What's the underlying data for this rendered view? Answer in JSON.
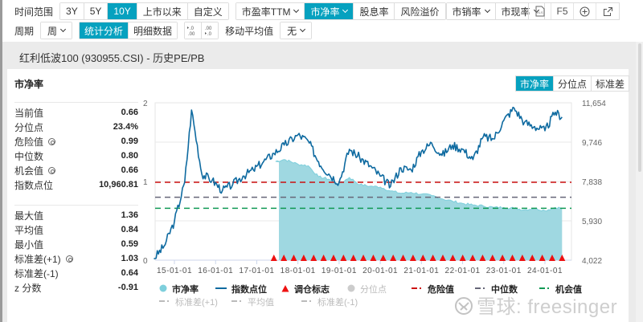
{
  "toolbar": {
    "time_range_label": "时间范围",
    "time_ranges": [
      {
        "label": "3Y",
        "active": false
      },
      {
        "label": "5Y",
        "active": false
      },
      {
        "label": "10Y",
        "active": true
      },
      {
        "label": "上市以来",
        "active": false
      },
      {
        "label": "自定义",
        "active": false
      }
    ],
    "metrics": [
      {
        "label": "市盈率TTM",
        "dropdown": true,
        "active": false
      },
      {
        "label": "市净率",
        "dropdown": true,
        "active": true
      },
      {
        "label": "股息率",
        "dropdown": false,
        "active": false
      },
      {
        "label": "风险溢价",
        "dropdown": false,
        "active": false
      },
      {
        "label": "市销率",
        "dropdown": true,
        "active": false
      },
      {
        "label": "市现率",
        "dropdown": true,
        "active": false
      }
    ],
    "period_label": "周期",
    "period_value": "周",
    "views": [
      {
        "label": "统计分析",
        "active": true
      },
      {
        "label": "明细数据",
        "active": false
      }
    ],
    "decimal_inc": ".0 / .00",
    "decimal_dec": ".00 / .0",
    "moving_avg_label": "移动平均值",
    "moving_avg_value": "无",
    "actions": {
      "xls": "XLS",
      "refresh": "F5",
      "zoom_in": "⊕",
      "open_external": "↗"
    }
  },
  "panel": {
    "title": "红利低波100 (930955.CSI) - 历史PE/PB"
  },
  "card": {
    "title": "市净率",
    "tabs": [
      {
        "label": "市净率",
        "active": true
      },
      {
        "label": "分位点",
        "active": false
      },
      {
        "label": "标准差",
        "active": false
      }
    ]
  },
  "stats": {
    "group1": [
      {
        "label": "当前值",
        "value": "0.66",
        "gear": false
      },
      {
        "label": "分位点",
        "value": "23.4%",
        "gear": false
      },
      {
        "label": "危险值",
        "value": "0.99",
        "gear": true
      },
      {
        "label": "中位数",
        "value": "0.80",
        "gear": false
      },
      {
        "label": "机会值",
        "value": "0.66",
        "gear": true
      },
      {
        "label": "指数点位",
        "value": "10,960.81",
        "gear": false
      }
    ],
    "group2": [
      {
        "label": "最大值",
        "value": "1.36",
        "gear": false
      },
      {
        "label": "平均值",
        "value": "0.84",
        "gear": false
      },
      {
        "label": "最小值",
        "value": "0.59",
        "gear": false
      },
      {
        "label": "标准差(+1)",
        "value": "1.03",
        "gear": true
      },
      {
        "label": "标准差(-1)",
        "value": "0.64",
        "gear": false
      },
      {
        "label": "z 分数",
        "value": "-0.91",
        "gear": false
      }
    ]
  },
  "legend": {
    "row1": [
      {
        "label": "市净率",
        "symbol": "circle",
        "color": "#7ecfdc",
        "dim": false
      },
      {
        "label": "指数点位",
        "symbol": "line",
        "color": "#0e6aa0",
        "dim": false
      },
      {
        "label": "调仓标志",
        "symbol": "triangle",
        "color": "#ee1111",
        "dim": false
      },
      {
        "label": "分位点",
        "symbol": "circle",
        "color": "#cccccc",
        "dim": true
      },
      {
        "label": "危险值",
        "symbol": "dash",
        "color": "#cc1111",
        "dim": false
      },
      {
        "label": "中位数",
        "symbol": "dash",
        "color": "#666677",
        "dim": false
      },
      {
        "label": "机会值",
        "symbol": "dash",
        "color": "#119955",
        "dim": false
      }
    ],
    "row2": [
      {
        "label": "标准差(+1)",
        "symbol": "dash",
        "color": "#bbbbbb",
        "dim": true
      },
      {
        "label": "平均值",
        "symbol": "dash",
        "color": "#bbbbbb",
        "dim": true
      },
      {
        "label": "标准差(-1)",
        "symbol": "dash",
        "color": "#bbbbbb",
        "dim": true
      }
    ]
  },
  "watermark": "雪球: freesinger",
  "colors": {
    "accent": "#06a1bf",
    "pb_area": "#9fd8e1",
    "pb_line": "#7ecfdc",
    "index_line": "#0e6aa0",
    "danger": "#cc1111",
    "median": "#666677",
    "opportunity": "#119955",
    "rebalance": "#ee1111"
  },
  "chart_data": {
    "type": "line",
    "title": "市净率",
    "x_tick_labels": [
      "15-01-01",
      "16-01-01",
      "17-01-01",
      "18-01-01",
      "19-01-01",
      "20-01-01",
      "21-01-01",
      "22-01-01",
      "23-01-01",
      "24-01-01"
    ],
    "y_left": {
      "label": "市净率",
      "ticks": [
        0,
        1,
        2
      ],
      "range": [
        0,
        2
      ]
    },
    "y_right": {
      "label": "指数点位",
      "ticks": [
        4022,
        5930,
        7838,
        9746,
        11654
      ],
      "range": [
        4022,
        11654
      ]
    },
    "grid": true,
    "legend_position": "bottom",
    "reference_lines": [
      {
        "name": "危险值",
        "value": 0.99,
        "color": "#cc1111"
      },
      {
        "name": "中位数",
        "value": 0.8,
        "color": "#666677"
      },
      {
        "name": "机会值",
        "value": 0.66,
        "color": "#119955"
      }
    ],
    "series": [
      {
        "name": "市净率",
        "type": "area",
        "axis": "left",
        "x": [
          "17-06",
          "17-09",
          "18-01",
          "18-04",
          "18-07",
          "18-10",
          "19-01",
          "19-04",
          "19-07",
          "19-10",
          "20-01",
          "20-04",
          "20-07",
          "20-10",
          "21-01",
          "21-04",
          "21-07",
          "21-10",
          "22-01",
          "22-04",
          "22-07",
          "22-10",
          "23-01",
          "23-04",
          "23-07",
          "23-10",
          "24-01",
          "24-04",
          "24-06"
        ],
        "values": [
          1.25,
          1.28,
          1.22,
          1.2,
          1.06,
          1.03,
          0.97,
          1.05,
          0.96,
          0.94,
          0.93,
          0.88,
          0.85,
          0.86,
          0.84,
          0.82,
          0.78,
          0.75,
          0.72,
          0.7,
          0.69,
          0.67,
          0.67,
          0.66,
          0.64,
          0.66,
          0.63,
          0.67,
          0.66
        ]
      },
      {
        "name": "指数点位",
        "type": "line",
        "axis": "right",
        "x": [
          "14-07",
          "14-10",
          "15-01",
          "15-04",
          "15-06",
          "15-09",
          "15-12",
          "16-03",
          "16-06",
          "16-09",
          "16-12",
          "17-03",
          "17-06",
          "17-09",
          "18-01",
          "18-04",
          "18-07",
          "18-10",
          "19-01",
          "19-04",
          "19-07",
          "19-10",
          "20-01",
          "20-04",
          "20-07",
          "20-10",
          "21-01",
          "21-04",
          "21-07",
          "21-10",
          "22-01",
          "22-04",
          "22-07",
          "22-10",
          "23-01",
          "23-04",
          "23-07",
          "23-10",
          "24-01",
          "24-04",
          "24-06"
        ],
        "values": [
          4100,
          4700,
          5900,
          7800,
          11300,
          8200,
          7900,
          7400,
          7700,
          8100,
          8400,
          8800,
          9200,
          9600,
          10100,
          9800,
          8800,
          8200,
          7800,
          9400,
          9000,
          8600,
          8100,
          7600,
          8500,
          8400,
          9300,
          9700,
          9100,
          9600,
          9400,
          8900,
          10000,
          9900,
          10800,
          11400,
          10700,
          10500,
          10300,
          11200,
          10960
        ]
      }
    ],
    "rebalance_markers": {
      "name": "调仓标志",
      "count": 30,
      "start": "17-06",
      "end": "24-06"
    }
  }
}
